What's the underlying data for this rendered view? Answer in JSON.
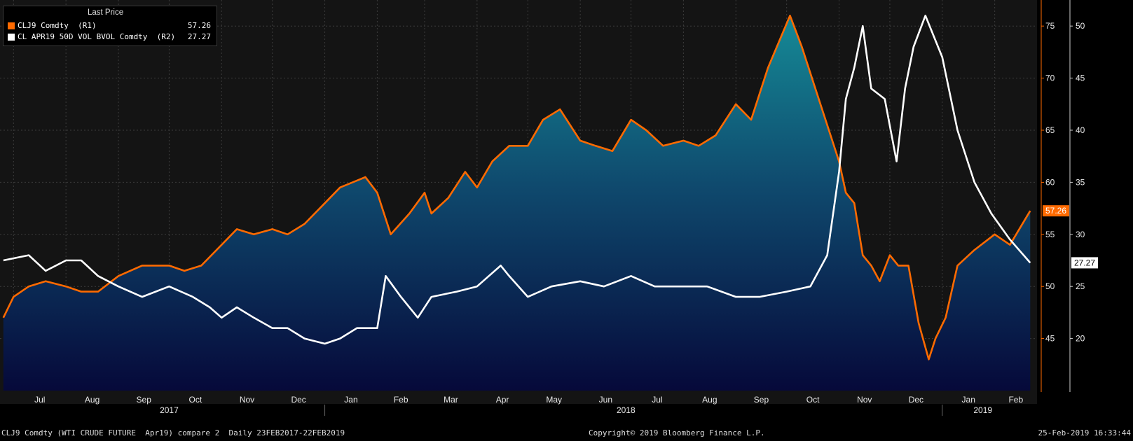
{
  "legend": {
    "title": "Last Price",
    "rows": [
      {
        "name": "CLJ9 Comdty  (R1)",
        "value": "57.26",
        "color": "#ff6a00"
      },
      {
        "name": "CL APR19 50D VOL BVOL Comdty  (R2)",
        "value": "27.27",
        "color": "#ffffff"
      }
    ]
  },
  "footer": {
    "left": "CLJ9 Comdty (WTI CRUDE FUTURE  Apr19) compare 2  Daily 23FEB2017-22FEB2019",
    "center": "Copyright© 2019 Bloomberg Finance L.P.",
    "right": "25-Feb-2019 16:33:44"
  },
  "chart_data": {
    "type": "line",
    "x_months": [
      "Jul",
      "Aug",
      "Sep",
      "Oct",
      "Nov",
      "Dec",
      "Jan",
      "Feb",
      "Mar",
      "Apr",
      "May",
      "Jun",
      "Jul",
      "Aug",
      "Sep",
      "Oct",
      "Nov",
      "Dec",
      "Jan",
      "Feb"
    ],
    "x_years": [
      "2017",
      "2018",
      "2019"
    ],
    "axes": {
      "R1": {
        "ticks": [
          45,
          50,
          55,
          60,
          65,
          70,
          75
        ],
        "range": [
          40,
          77.5
        ]
      },
      "R2": {
        "ticks": [
          20,
          25,
          30,
          35,
          40,
          45,
          50
        ],
        "range": [
          15,
          52.5
        ]
      }
    },
    "last_labels": {
      "R1": "57.26",
      "R2": "27.27"
    },
    "series": [
      {
        "name": "CLJ9 Comdty",
        "axis": "R1",
        "color": "#ff6a00",
        "area_fill": true,
        "points": [
          [
            "2017-06-25",
            47
          ],
          [
            "2017-07-01",
            49
          ],
          [
            "2017-07-10",
            50
          ],
          [
            "2017-07-20",
            50.5
          ],
          [
            "2017-08-01",
            50
          ],
          [
            "2017-08-10",
            49.5
          ],
          [
            "2017-08-20",
            49.5
          ],
          [
            "2017-09-01",
            51
          ],
          [
            "2017-09-15",
            52
          ],
          [
            "2017-10-01",
            52
          ],
          [
            "2017-10-10",
            51.5
          ],
          [
            "2017-10-20",
            52
          ],
          [
            "2017-11-01",
            54
          ],
          [
            "2017-11-10",
            55.5
          ],
          [
            "2017-11-20",
            55
          ],
          [
            "2017-12-01",
            55.5
          ],
          [
            "2017-12-10",
            55
          ],
          [
            "2017-12-20",
            56
          ],
          [
            "2018-01-01",
            58
          ],
          [
            "2018-01-10",
            59.5
          ],
          [
            "2018-01-25",
            60.5
          ],
          [
            "2018-02-01",
            59
          ],
          [
            "2018-02-09",
            55
          ],
          [
            "2018-02-20",
            57
          ],
          [
            "2018-03-01",
            59
          ],
          [
            "2018-03-05",
            57
          ],
          [
            "2018-03-15",
            58.5
          ],
          [
            "2018-03-25",
            61
          ],
          [
            "2018-04-01",
            59.5
          ],
          [
            "2018-04-10",
            62
          ],
          [
            "2018-04-20",
            63.5
          ],
          [
            "2018-05-01",
            63.5
          ],
          [
            "2018-05-10",
            66
          ],
          [
            "2018-05-20",
            67
          ],
          [
            "2018-06-01",
            64
          ],
          [
            "2018-06-10",
            63.5
          ],
          [
            "2018-06-20",
            63
          ],
          [
            "2018-07-01",
            66
          ],
          [
            "2018-07-10",
            65
          ],
          [
            "2018-07-20",
            63.5
          ],
          [
            "2018-08-01",
            64
          ],
          [
            "2018-08-10",
            63.5
          ],
          [
            "2018-08-20",
            64.5
          ],
          [
            "2018-09-01",
            67.5
          ],
          [
            "2018-09-10",
            66
          ],
          [
            "2018-09-20",
            71
          ],
          [
            "2018-10-03",
            76
          ],
          [
            "2018-10-10",
            73
          ],
          [
            "2018-10-20",
            68
          ],
          [
            "2018-11-01",
            62
          ],
          [
            "2018-11-05",
            59
          ],
          [
            "2018-11-10",
            58
          ],
          [
            "2018-11-15",
            53
          ],
          [
            "2018-11-20",
            52
          ],
          [
            "2018-11-25",
            50.5
          ],
          [
            "2018-12-01",
            53
          ],
          [
            "2018-12-06",
            52
          ],
          [
            "2018-12-12",
            52
          ],
          [
            "2018-12-18",
            46.5
          ],
          [
            "2018-12-24",
            43
          ],
          [
            "2018-12-28",
            45
          ],
          [
            "2019-01-03",
            47
          ],
          [
            "2019-01-10",
            52
          ],
          [
            "2019-01-20",
            53.5
          ],
          [
            "2019-02-01",
            55
          ],
          [
            "2019-02-10",
            54
          ],
          [
            "2019-02-22",
            57.26
          ]
        ]
      },
      {
        "name": "CL APR19 50D VOL BVOL Comdty",
        "axis": "R2",
        "color": "#ffffff",
        "area_fill": false,
        "points": [
          [
            "2017-06-25",
            27.5
          ],
          [
            "2017-07-10",
            28
          ],
          [
            "2017-07-20",
            26.5
          ],
          [
            "2017-08-01",
            27.5
          ],
          [
            "2017-08-10",
            27.5
          ],
          [
            "2017-08-20",
            26
          ],
          [
            "2017-09-01",
            25
          ],
          [
            "2017-09-15",
            24
          ],
          [
            "2017-10-01",
            25
          ],
          [
            "2017-10-15",
            24
          ],
          [
            "2017-10-25",
            23
          ],
          [
            "2017-11-01",
            22
          ],
          [
            "2017-11-10",
            23
          ],
          [
            "2017-11-20",
            22
          ],
          [
            "2017-12-01",
            21
          ],
          [
            "2017-12-10",
            21
          ],
          [
            "2017-12-20",
            20
          ],
          [
            "2018-01-01",
            19.5
          ],
          [
            "2018-01-10",
            20
          ],
          [
            "2018-01-20",
            21
          ],
          [
            "2018-02-01",
            21
          ],
          [
            "2018-02-06",
            26
          ],
          [
            "2018-02-15",
            24
          ],
          [
            "2018-02-25",
            22
          ],
          [
            "2018-03-05",
            24
          ],
          [
            "2018-03-20",
            24.5
          ],
          [
            "2018-04-01",
            25
          ],
          [
            "2018-04-15",
            27
          ],
          [
            "2018-04-20",
            26
          ],
          [
            "2018-05-01",
            24
          ],
          [
            "2018-05-15",
            25
          ],
          [
            "2018-06-01",
            25.5
          ],
          [
            "2018-06-15",
            25
          ],
          [
            "2018-07-01",
            26
          ],
          [
            "2018-07-15",
            25
          ],
          [
            "2018-08-01",
            25
          ],
          [
            "2018-08-15",
            25
          ],
          [
            "2018-09-01",
            24
          ],
          [
            "2018-09-15",
            24
          ],
          [
            "2018-10-01",
            24.5
          ],
          [
            "2018-10-15",
            25
          ],
          [
            "2018-10-25",
            28
          ],
          [
            "2018-11-01",
            36
          ],
          [
            "2018-11-05",
            43
          ],
          [
            "2018-11-10",
            46
          ],
          [
            "2018-11-15",
            50
          ],
          [
            "2018-11-20",
            44
          ],
          [
            "2018-11-28",
            43
          ],
          [
            "2018-12-05",
            37
          ],
          [
            "2018-12-10",
            44
          ],
          [
            "2018-12-15",
            48
          ],
          [
            "2018-12-22",
            51
          ],
          [
            "2019-01-01",
            47
          ],
          [
            "2019-01-10",
            40
          ],
          [
            "2019-01-20",
            35
          ],
          [
            "2019-01-30",
            32
          ],
          [
            "2019-02-10",
            29.5
          ],
          [
            "2019-02-22",
            27.27
          ]
        ]
      }
    ]
  }
}
